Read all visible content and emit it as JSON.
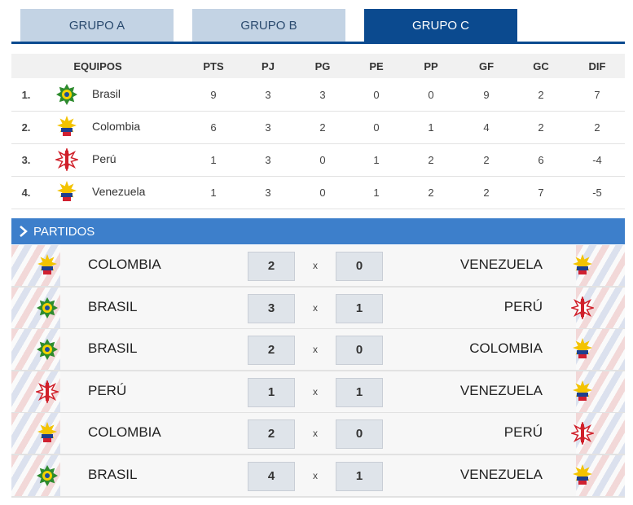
{
  "tabs": [
    "GRUPO A",
    "GRUPO B",
    "GRUPO C"
  ],
  "standings": {
    "columns": [
      "EQUIPOS",
      "PTS",
      "PJ",
      "PG",
      "PE",
      "PP",
      "GF",
      "GC",
      "DIF"
    ],
    "rows": [
      {
        "rank": "1.",
        "team": "Brasil",
        "pts": 9,
        "pj": 3,
        "pg": 3,
        "pe": 0,
        "pp": 0,
        "gf": 9,
        "gc": 2,
        "dif": 7
      },
      {
        "rank": "2.",
        "team": "Colombia",
        "pts": 6,
        "pj": 3,
        "pg": 2,
        "pe": 0,
        "pp": 1,
        "gf": 4,
        "gc": 2,
        "dif": 2
      },
      {
        "rank": "3.",
        "team": "Perú",
        "pts": 1,
        "pj": 3,
        "pg": 0,
        "pe": 1,
        "pp": 2,
        "gf": 2,
        "gc": 6,
        "dif": -4
      },
      {
        "rank": "4.",
        "team": "Venezuela",
        "pts": 1,
        "pj": 3,
        "pg": 0,
        "pe": 1,
        "pp": 2,
        "gf": 2,
        "gc": 7,
        "dif": -5
      }
    ]
  },
  "matches": {
    "title": "PARTIDOS",
    "separator": "x",
    "rows": [
      {
        "home": "COLOMBIA",
        "home_score": 2,
        "away_score": 0,
        "away": "VENEZUELA"
      },
      {
        "home": "BRASIL",
        "home_score": 3,
        "away_score": 1,
        "away": "PERÚ"
      },
      {
        "home": "BRASIL",
        "home_score": 2,
        "away_score": 0,
        "away": "COLOMBIA"
      },
      {
        "home": "PERÚ",
        "home_score": 1,
        "away_score": 1,
        "away": "VENEZUELA"
      },
      {
        "home": "COLOMBIA",
        "home_score": 2,
        "away_score": 0,
        "away": "PERÚ"
      },
      {
        "home": "BRASIL",
        "home_score": 4,
        "away_score": 1,
        "away": "VENEZUELA"
      }
    ]
  }
}
